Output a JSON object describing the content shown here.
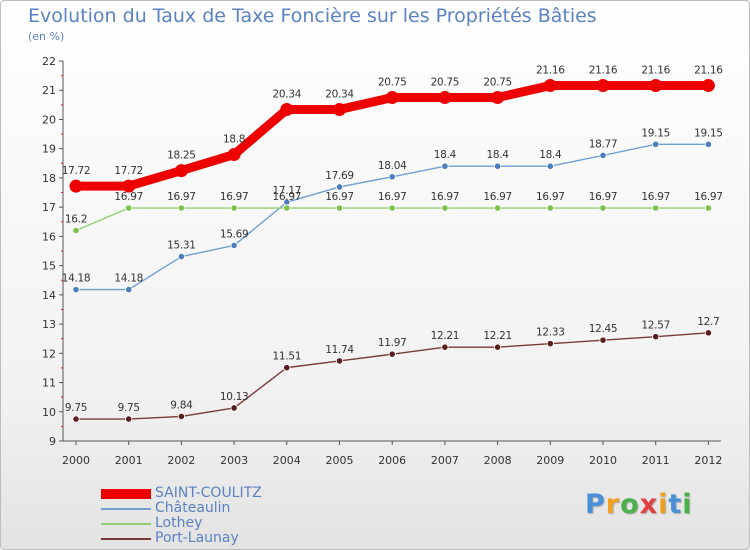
{
  "header": {
    "title": "Evolution du Taux de Taxe Foncière sur les Propriétés Bâties",
    "unit": "(en %)"
  },
  "logo": {
    "letters": [
      "P",
      "r",
      "o",
      "x",
      "i",
      "t",
      "i"
    ],
    "colors": [
      "#4a90d9",
      "#f0a020",
      "#4ab04a",
      "#e04040",
      "#f0a020",
      "#4a90d9",
      "#4ab04a"
    ]
  },
  "chart_data": {
    "type": "line",
    "title": "Evolution du Taux de Taxe Foncière sur les Propriétés Bâties",
    "ylabel": "(en %)",
    "xlabel": "",
    "x": [
      "2000",
      "2001",
      "2002",
      "2003",
      "2004",
      "2005",
      "2006",
      "2007",
      "2008",
      "2009",
      "2010",
      "2011",
      "2012"
    ],
    "ylim": [
      9,
      22
    ],
    "yticks": [
      "9",
      "10",
      "11",
      "12",
      "13",
      "14",
      "15",
      "16",
      "17",
      "18",
      "19",
      "20",
      "21",
      "22"
    ],
    "grid": false,
    "legend_position": "bottom-left",
    "series": [
      {
        "name": "SAINT-COULITZ",
        "color": "#ee0000",
        "point_color": "#ee0000",
        "emphasis": "thick",
        "values": [
          17.72,
          17.72,
          18.25,
          18.8,
          20.34,
          20.34,
          20.75,
          20.75,
          20.75,
          21.16,
          21.16,
          21.16,
          21.16
        ],
        "labels": [
          "17.72",
          "17.72",
          "18.25",
          "18.8",
          "20.34",
          "20.34",
          "20.75",
          "20.75",
          "20.75",
          "21.16",
          "21.16",
          "21.16",
          "21.16"
        ]
      },
      {
        "name": "Châteaulin",
        "color": "#6fa0d0",
        "point_color": "#4a7fbf",
        "emphasis": "thin",
        "values": [
          14.18,
          14.18,
          15.31,
          15.69,
          17.17,
          17.69,
          18.04,
          18.4,
          18.4,
          18.4,
          18.77,
          19.15,
          19.15
        ],
        "labels": [
          "14.18",
          "14.18",
          "15.31",
          "15.69",
          "17.17",
          "17.69",
          "18.04",
          "18.4",
          "18.4",
          "18.4",
          "18.77",
          "19.15",
          "19.15"
        ]
      },
      {
        "name": "Lothey",
        "color": "#90d070",
        "point_color": "#7cc24a",
        "emphasis": "thin",
        "values": [
          16.2,
          16.97,
          16.97,
          16.97,
          16.97,
          16.97,
          16.97,
          16.97,
          16.97,
          16.97,
          16.97,
          16.97,
          16.97
        ],
        "labels": [
          "16.2",
          "16.97",
          "16.97",
          "16.97",
          "16.97",
          "16.97",
          "16.97",
          "16.97",
          "16.97",
          "16.97",
          "16.97",
          "16.97",
          "16.97"
        ]
      },
      {
        "name": "Port-Launay",
        "color": "#7a3a3a",
        "point_color": "#5a1e1e",
        "emphasis": "thin",
        "values": [
          9.75,
          9.75,
          9.84,
          10.13,
          11.51,
          11.74,
          11.97,
          12.21,
          12.21,
          12.33,
          12.45,
          12.57,
          12.7
        ],
        "labels": [
          "9.75",
          "9.75",
          "9.84",
          "10.13",
          "11.51",
          "11.74",
          "11.97",
          "12.21",
          "12.21",
          "12.33",
          "12.45",
          "12.57",
          "12.7"
        ]
      }
    ]
  }
}
